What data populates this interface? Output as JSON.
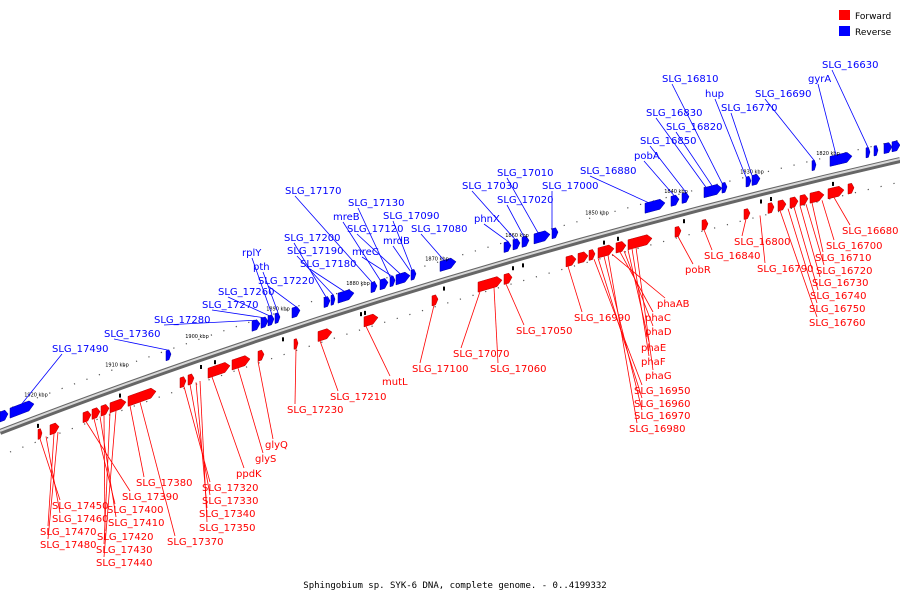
{
  "caption": "Sphingobium sp. SYK-6 DNA, complete genome. - 0..4199332",
  "legend": [
    {
      "label": "Forward",
      "color": "#ff0000"
    },
    {
      "label": "Reverse",
      "color": "#0000ff"
    }
  ],
  "colors": {
    "forward": "#ff0000",
    "reverse": "#0000ff",
    "forward_dark": "#b00000",
    "reverse_dark": "#0000a0",
    "backbone": "#888888"
  },
  "ticks": [
    "1920 kbp",
    "1910 kbp",
    "1900 kbp",
    "1890 kbp",
    "1880 kbp",
    "1870 kbp",
    "1860 kbp",
    "1850 kbp",
    "1840 kbp",
    "1830 kbp",
    "1820 kbp"
  ],
  "reverse_labels": [
    "SLG_17490",
    "SLG_17360",
    "SLG_17280",
    "SLG_17270",
    "SLG_17260",
    "rplY",
    "pth",
    "SLG_17220",
    "SLG_17200",
    "SLG_17190",
    "SLG_17180",
    "SLG_17170",
    "mreB",
    "SLG_17130",
    "mreC",
    "SLG_17120",
    "mrdB",
    "SLG_17090",
    "SLG_17080",
    "phnX",
    "SLG_17030",
    "SLG_17020",
    "SLG_17010",
    "SLG_17000",
    "SLG_16880",
    "pobA",
    "SLG_16850",
    "SLG_16830",
    "SLG_16820",
    "SLG_16810",
    "hup",
    "SLG_16770",
    "SLG_16690",
    "gyrA",
    "SLG_16630"
  ],
  "forward_labels": [
    "SLG_17450",
    "SLG_17460",
    "SLG_17470",
    "SLG_17480",
    "SLG_17390",
    "SLG_17400",
    "SLG_17410",
    "SLG_17420",
    "SLG_17430",
    "SLG_17440",
    "SLG_17380",
    "SLG_17370",
    "SLG_17320",
    "SLG_17330",
    "SLG_17340",
    "SLG_17350",
    "ppdK",
    "glyS",
    "glyQ",
    "SLG_17230",
    "SLG_17210",
    "mutL",
    "SLG_17100",
    "SLG_17070",
    "SLG_17060",
    "SLG_17050",
    "SLG_16990",
    "phaAB",
    "phaC",
    "phaD",
    "phaE",
    "phaF",
    "phaG",
    "SLG_16950",
    "SLG_16960",
    "SLG_16970",
    "SLG_16980",
    "pobR",
    "SLG_16840",
    "SLG_16800",
    "SLG_16790",
    "SLG_16680",
    "SLG_16700",
    "SLG_16710",
    "SLG_16720",
    "SLG_16730",
    "SLG_16740",
    "SLG_16750",
    "SLG_16760"
  ]
}
